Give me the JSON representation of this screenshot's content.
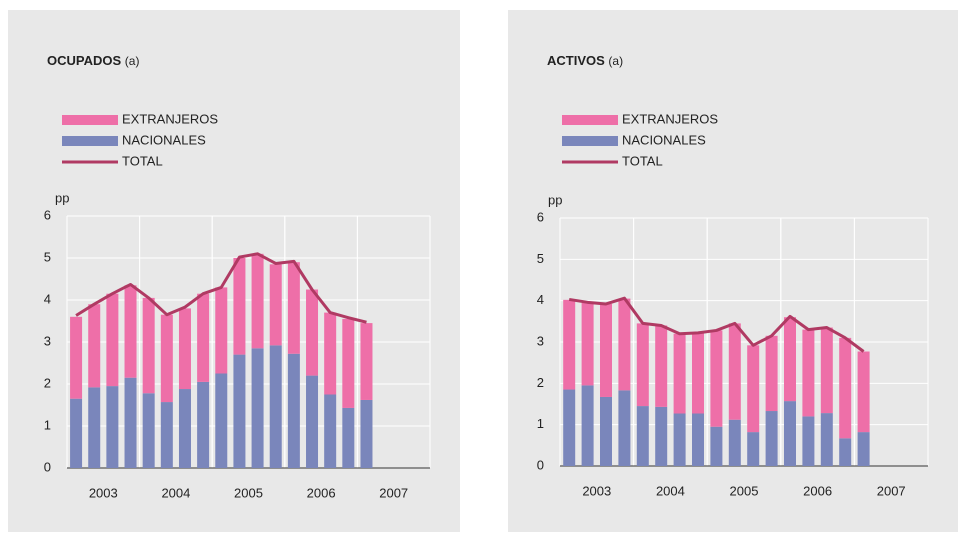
{
  "chart_data": [
    {
      "type": "stacked-bar-line",
      "title": "OCUPADOS",
      "title_note": "(a)",
      "ylabel": "pp",
      "categories": [
        "2003",
        null,
        null,
        null,
        "2004",
        null,
        null,
        null,
        "2005",
        null,
        null,
        null,
        "2006",
        null,
        null,
        null,
        "2007",
        null,
        null,
        null
      ],
      "series": [
        {
          "name": "EXTRANJEROS",
          "kind": "bar",
          "color": "#ee6fa8",
          "values": [
            1.95,
            1.98,
            2.2,
            2.2,
            2.27,
            2.08,
            1.92,
            2.1,
            2.05,
            2.3,
            2.25,
            1.93,
            2.18,
            2.05,
            1.95,
            2.12,
            1.83,
            null,
            null,
            null
          ]
        },
        {
          "name": "NACIONALES",
          "kind": "bar",
          "color": "#7a86bb",
          "values": [
            1.65,
            1.92,
            1.95,
            2.15,
            1.78,
            1.57,
            1.88,
            2.05,
            2.25,
            2.7,
            2.85,
            2.92,
            2.72,
            2.2,
            1.75,
            1.43,
            1.62,
            null,
            null,
            null
          ]
        },
        {
          "name": "TOTAL",
          "kind": "line",
          "color": "#b03a63",
          "values": [
            3.63,
            3.9,
            4.15,
            4.37,
            4.05,
            3.65,
            3.83,
            4.15,
            4.3,
            5.02,
            5.1,
            4.87,
            4.92,
            4.25,
            3.7,
            3.58,
            3.47,
            null,
            null,
            null
          ]
        }
      ],
      "ylim": [
        0,
        6
      ],
      "yticks": [
        0,
        1,
        2,
        3,
        4,
        5,
        6
      ],
      "grid": true
    },
    {
      "type": "stacked-bar-line",
      "title": "ACTIVOS",
      "title_note": "(a)",
      "ylabel": "pp",
      "categories": [
        "2003",
        null,
        null,
        null,
        "2004",
        null,
        null,
        null,
        "2005",
        null,
        null,
        null,
        "2006",
        null,
        null,
        null,
        "2007",
        null,
        null,
        null
      ],
      "series": [
        {
          "name": "EXTRANJEROS",
          "kind": "bar",
          "color": "#ee6fa8",
          "values": [
            2.17,
            2.0,
            2.25,
            2.22,
            2.0,
            1.97,
            1.93,
            1.95,
            2.33,
            2.33,
            2.1,
            1.82,
            2.03,
            2.1,
            2.07,
            2.43,
            1.95,
            null,
            null,
            null
          ]
        },
        {
          "name": "NACIONALES",
          "kind": "bar",
          "color": "#7a86bb",
          "values": [
            1.85,
            1.95,
            1.67,
            1.83,
            1.45,
            1.43,
            1.27,
            1.27,
            0.95,
            1.12,
            0.82,
            1.33,
            1.57,
            1.2,
            1.28,
            0.67,
            0.82,
            null,
            null,
            null
          ]
        },
        {
          "name": "TOTAL",
          "kind": "line",
          "color": "#b03a63",
          "values": [
            4.03,
            3.96,
            3.92,
            4.06,
            3.45,
            3.4,
            3.2,
            3.22,
            3.28,
            3.45,
            2.92,
            3.15,
            3.62,
            3.3,
            3.35,
            3.1,
            2.77,
            null,
            null,
            null
          ]
        }
      ],
      "ylim": [
        0,
        6
      ],
      "yticks": [
        0,
        1,
        2,
        3,
        4,
        5,
        6
      ],
      "grid": true
    }
  ]
}
